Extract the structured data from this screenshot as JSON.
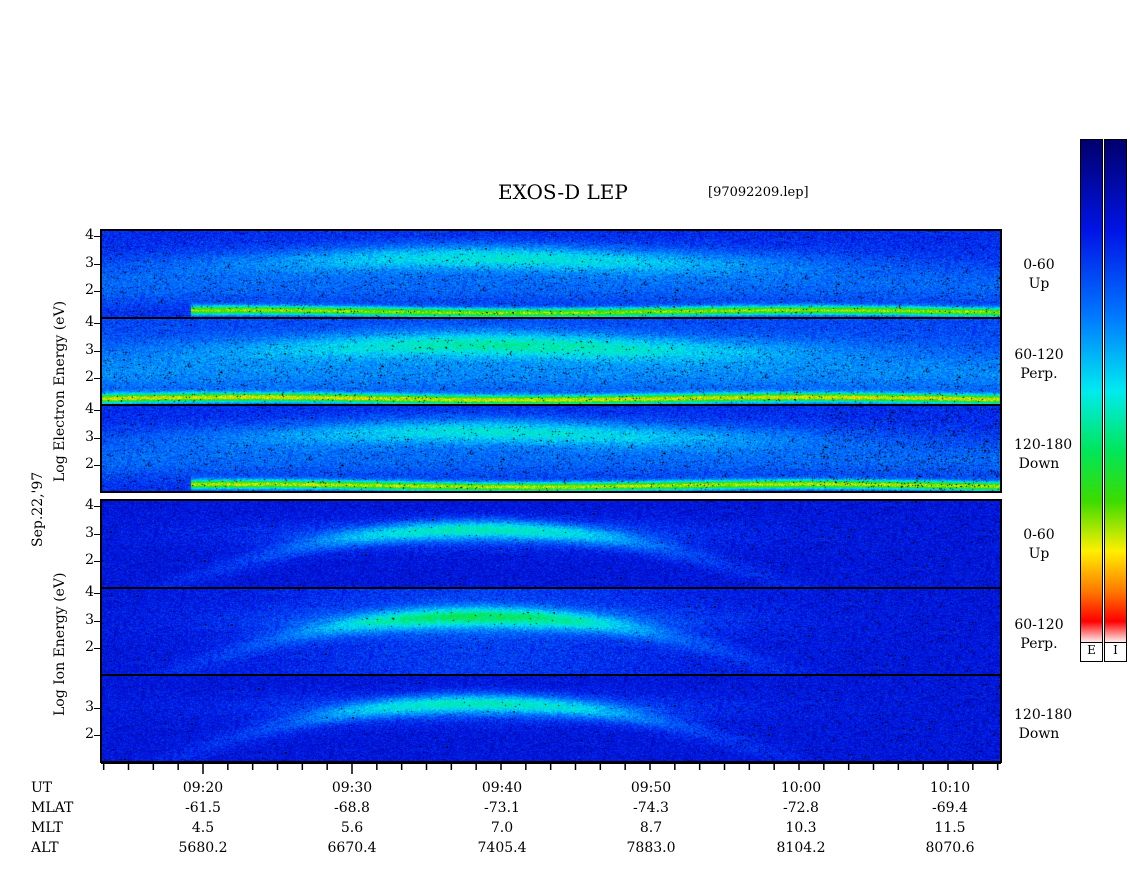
{
  "header": {
    "title": "EXOS-D LEP",
    "file": "[97092209.lep]"
  },
  "date_label": "Sep.22,'97",
  "side_titles": {
    "electron": "Log   Electron   Energy (eV)",
    "ion": "Log   Ion   Energy (eV)"
  },
  "panel_labels": [
    {
      "range": "0-60",
      "dir": "Up"
    },
    {
      "range": "60-120",
      "dir": "Perp."
    },
    {
      "range": "120-180",
      "dir": "Down"
    },
    {
      "range": "0-60",
      "dir": "Up"
    },
    {
      "range": "60-120",
      "dir": "Perp."
    },
    {
      "range": "120-180",
      "dir": "Down"
    }
  ],
  "yticks": [
    "4",
    "3",
    "2"
  ],
  "colorbar": {
    "left_tag": "E",
    "right_tag": "I"
  },
  "footer": {
    "row_names": [
      "UT",
      "MLAT",
      "MLT",
      "ALT"
    ],
    "columns": [
      {
        "ut": "09:20",
        "mlat": "-61.5",
        "mlt": "4.5",
        "alt": "5680.2"
      },
      {
        "ut": "09:30",
        "mlat": "-68.8",
        "mlt": "5.6",
        "alt": "6670.4"
      },
      {
        "ut": "09:40",
        "mlat": "-73.1",
        "mlt": "7.0",
        "alt": "7405.4"
      },
      {
        "ut": "09:50",
        "mlat": "-74.3",
        "mlt": "8.7",
        "alt": "7883.0"
      },
      {
        "ut": "10:00",
        "mlat": "-72.8",
        "mlt": "10.3",
        "alt": "8104.2"
      },
      {
        "ut": "10:10",
        "mlat": "-69.4",
        "mlt": "11.5",
        "alt": "8070.6"
      }
    ]
  },
  "chart_data": {
    "type": "heatmap",
    "title": "EXOS-D LEP",
    "x_label": "UT",
    "x_ticks": [
      "09:20",
      "09:30",
      "09:40",
      "09:50",
      "10:00",
      "10:10"
    ],
    "y_label_electron": "Log Electron Energy (eV)",
    "y_label_ion": "Log Ion Energy (eV)",
    "y_ticks": [
      4,
      3,
      2
    ],
    "ylim": [
      1,
      4.2
    ],
    "panels": [
      {
        "species": "Electron",
        "pitch_angle": "0-60",
        "direction": "Up"
      },
      {
        "species": "Electron",
        "pitch_angle": "60-120",
        "direction": "Perp."
      },
      {
        "species": "Electron",
        "pitch_angle": "120-180",
        "direction": "Down"
      },
      {
        "species": "Ion",
        "pitch_angle": "0-60",
        "direction": "Up"
      },
      {
        "species": "Ion",
        "pitch_angle": "60-120",
        "direction": "Perp."
      },
      {
        "species": "Ion",
        "pitch_angle": "120-180",
        "direction": "Down"
      }
    ],
    "colormap": [
      "#ffffff",
      "#ff0000",
      "#ffff00",
      "#00ff00",
      "#00ffff",
      "#0000ff",
      "#000080"
    ]
  }
}
